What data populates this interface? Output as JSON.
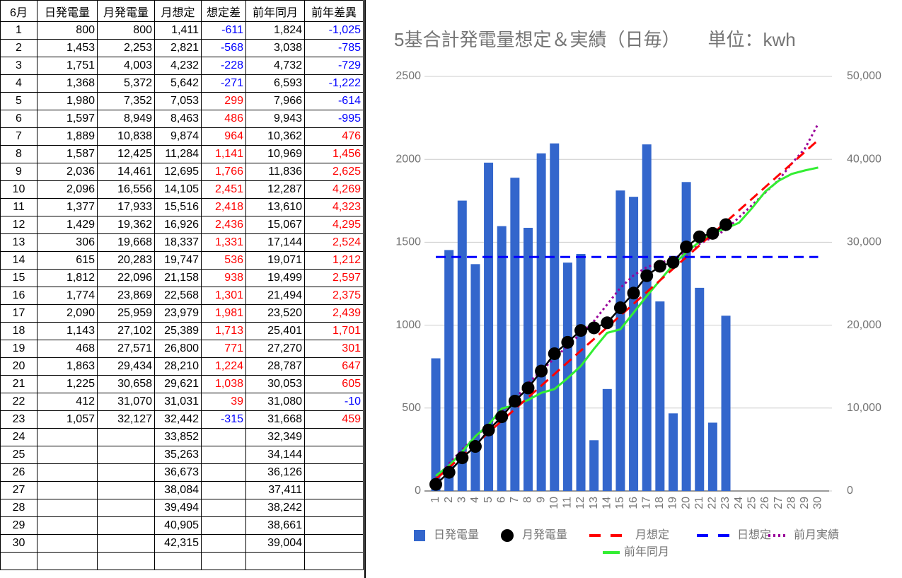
{
  "table": {
    "header": [
      "6月",
      "日発電量",
      "月発電量",
      "月想定",
      "想定差",
      "前年同月",
      "前年差異"
    ],
    "rows": [
      [
        "1",
        "800",
        "800",
        "1,411",
        "-611",
        "1,824",
        "-1,025"
      ],
      [
        "2",
        "1,453",
        "2,253",
        "2,821",
        "-568",
        "3,038",
        "-785"
      ],
      [
        "3",
        "1,751",
        "4,003",
        "4,232",
        "-228",
        "4,732",
        "-729"
      ],
      [
        "4",
        "1,368",
        "5,372",
        "5,642",
        "-271",
        "6,593",
        "-1,222"
      ],
      [
        "5",
        "1,980",
        "7,352",
        "7,053",
        "299",
        "7,966",
        "-614"
      ],
      [
        "6",
        "1,597",
        "8,949",
        "8,463",
        "486",
        "9,943",
        "-995"
      ],
      [
        "7",
        "1,889",
        "10,838",
        "9,874",
        "964",
        "10,362",
        "476"
      ],
      [
        "8",
        "1,587",
        "12,425",
        "11,284",
        "1,141",
        "10,969",
        "1,456"
      ],
      [
        "9",
        "2,036",
        "14,461",
        "12,695",
        "1,766",
        "11,836",
        "2,625"
      ],
      [
        "10",
        "2,096",
        "16,556",
        "14,105",
        "2,451",
        "12,287",
        "4,269"
      ],
      [
        "11",
        "1,377",
        "17,933",
        "15,516",
        "2,418",
        "13,610",
        "4,323"
      ],
      [
        "12",
        "1,429",
        "19,362",
        "16,926",
        "2,436",
        "15,067",
        "4,295"
      ],
      [
        "13",
        "306",
        "19,668",
        "18,337",
        "1,331",
        "17,144",
        "2,524"
      ],
      [
        "14",
        "615",
        "20,283",
        "19,747",
        "536",
        "19,071",
        "1,212"
      ],
      [
        "15",
        "1,812",
        "22,096",
        "21,158",
        "938",
        "19,499",
        "2,597"
      ],
      [
        "16",
        "1,774",
        "23,869",
        "22,568",
        "1,301",
        "21,494",
        "2,375"
      ],
      [
        "17",
        "2,090",
        "25,959",
        "23,979",
        "1,981",
        "23,520",
        "2,439"
      ],
      [
        "18",
        "1,143",
        "27,102",
        "25,389",
        "1,713",
        "25,401",
        "1,701"
      ],
      [
        "19",
        "468",
        "27,571",
        "26,800",
        "771",
        "27,270",
        "301"
      ],
      [
        "20",
        "1,863",
        "29,434",
        "28,210",
        "1,224",
        "28,787",
        "647"
      ],
      [
        "21",
        "1,225",
        "30,658",
        "29,621",
        "1,038",
        "30,053",
        "605"
      ],
      [
        "22",
        "412",
        "31,070",
        "31,031",
        "39",
        "31,080",
        "-10"
      ],
      [
        "23",
        "1,057",
        "32,127",
        "32,442",
        "-315",
        "31,668",
        "459"
      ],
      [
        "24",
        null,
        null,
        "33,852",
        null,
        "32,349",
        null
      ],
      [
        "25",
        null,
        null,
        "35,263",
        null,
        "34,144",
        null
      ],
      [
        "26",
        null,
        null,
        "36,673",
        null,
        "36,126",
        null
      ],
      [
        "27",
        null,
        null,
        "38,084",
        null,
        "37,411",
        null
      ],
      [
        "28",
        null,
        null,
        "39,494",
        null,
        "38,242",
        null
      ],
      [
        "29",
        null,
        null,
        "40,905",
        null,
        "38,661",
        null
      ],
      [
        "30",
        null,
        null,
        "42,315",
        null,
        "39,004",
        null
      ]
    ]
  },
  "chart_data": {
    "type": "combo",
    "title": "5基合計発電量想定＆実績（日毎）　　単位：kwh",
    "categories": [
      "1",
      "2",
      "3",
      "4",
      "5",
      "6",
      "7",
      "8",
      "9",
      "10",
      "11",
      "12",
      "13",
      "14",
      "15",
      "16",
      "17",
      "18",
      "19",
      "20",
      "21",
      "22",
      "23",
      "24",
      "25",
      "26",
      "27",
      "28",
      "29",
      "30"
    ],
    "ylim": [
      0,
      2500
    ],
    "yticks": [
      0,
      500,
      1000,
      1500,
      2000,
      2500
    ],
    "y2lim": [
      0,
      50000
    ],
    "y2ticks": [
      0,
      {
        "value": 10000,
        "label": "10,000"
      },
      {
        "value": 20000,
        "label": "20,000"
      },
      {
        "value": 30000,
        "label": "30,000"
      },
      {
        "value": 40000,
        "label": "40,000"
      },
      {
        "value": 50000,
        "label": "50,000"
      }
    ],
    "grid": true,
    "legend": "bottom",
    "series": [
      {
        "name": "日発電量",
        "kind": "bar",
        "color": "#3366cc",
        "axis": "y",
        "values": [
          800,
          1453,
          1751,
          1368,
          1980,
          1597,
          1889,
          1587,
          2036,
          2096,
          1377,
          1429,
          306,
          615,
          1812,
          1774,
          2090,
          1143,
          468,
          1863,
          1225,
          412,
          1057,
          null,
          null,
          null,
          null,
          null,
          null,
          null
        ]
      },
      {
        "name": "月発電量",
        "kind": "markers",
        "color": "#000000",
        "axis": "y2",
        "values": [
          800,
          2253,
          4003,
          5372,
          7352,
          8949,
          10838,
          12425,
          14461,
          16556,
          17933,
          19362,
          19668,
          20283,
          22096,
          23869,
          25959,
          27102,
          27571,
          29434,
          30658,
          31070,
          32127,
          null,
          null,
          null,
          null,
          null,
          null,
          null
        ]
      },
      {
        "name": "月想定",
        "kind": "dashed",
        "color": "#ff0000",
        "axis": "y2",
        "values": [
          1411,
          2821,
          4232,
          5642,
          7053,
          8463,
          9874,
          11284,
          12695,
          14105,
          15516,
          16926,
          18337,
          19747,
          21158,
          22568,
          23979,
          25389,
          26800,
          28210,
          29621,
          31031,
          32442,
          33852,
          35263,
          36673,
          38084,
          39494,
          40905,
          42315
        ]
      },
      {
        "name": "日想定",
        "kind": "dashed",
        "color": "#0000ff",
        "axis": "y",
        "values": [
          1411,
          1411,
          1411,
          1411,
          1411,
          1411,
          1411,
          1411,
          1411,
          1411,
          1411,
          1411,
          1411,
          1411,
          1411,
          1411,
          1411,
          1411,
          1411,
          1411,
          1411,
          1411,
          1411,
          1411,
          1411,
          1411,
          1411,
          1411,
          1411,
          1411
        ]
      },
      {
        "name": "前月実績",
        "kind": "dotted",
        "color": "#990099",
        "axis": "y2",
        "values": [
          1500,
          3300,
          5000,
          6500,
          8000,
          9500,
          11000,
          13000,
          14500,
          16000,
          17500,
          19000,
          20500,
          22500,
          24500,
          26000,
          27000,
          27500,
          28000,
          28800,
          29800,
          30600,
          31500,
          33000,
          34500,
          36000,
          37500,
          39500,
          41300,
          44300
        ]
      },
      {
        "name": "前年同月",
        "kind": "line",
        "color": "#33ee33",
        "axis": "y2",
        "values": [
          1824,
          3038,
          4732,
          6593,
          7966,
          9943,
          10362,
          10969,
          11836,
          12287,
          13610,
          15067,
          17144,
          19071,
          19499,
          21494,
          23520,
          25401,
          27270,
          28787,
          30053,
          31080,
          31668,
          32349,
          34144,
          36126,
          37411,
          38242,
          38661,
          39004
        ]
      }
    ]
  }
}
